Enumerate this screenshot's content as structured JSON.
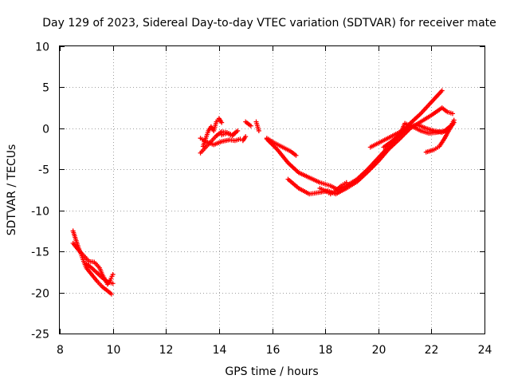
{
  "chart_data": {
    "type": "scatter",
    "title": "Day 129 of 2023, Sidereal Day-to-day VTEC variation (SDTVAR) for receiver mate",
    "xlabel": "GPS time / hours",
    "ylabel": "SDTVAR / TECUs",
    "xlim": [
      8,
      24
    ],
    "ylim": [
      -25,
      10
    ],
    "grid": true,
    "marker": "plus",
    "color": "#ff0000",
    "x_ticks": [
      8,
      10,
      12,
      14,
      16,
      18,
      20,
      22,
      24
    ],
    "y_ticks": [
      10,
      5,
      0,
      -5,
      -10,
      -15,
      -20,
      -25
    ],
    "tracks": [
      {
        "name": "track-1",
        "points": [
          [
            8.5,
            -12.5
          ],
          [
            8.6,
            -13.5
          ],
          [
            8.7,
            -14.5
          ],
          [
            8.8,
            -15.3
          ],
          [
            8.9,
            -16.2
          ],
          [
            9.0,
            -17.0
          ],
          [
            9.2,
            -17.8
          ],
          [
            9.4,
            -18.6
          ],
          [
            9.6,
            -19.3
          ],
          [
            9.8,
            -19.8
          ],
          [
            9.95,
            -20.2
          ]
        ]
      },
      {
        "name": "track-2",
        "points": [
          [
            8.5,
            -14.0
          ],
          [
            8.7,
            -14.8
          ],
          [
            8.9,
            -15.5
          ],
          [
            9.1,
            -16.2
          ],
          [
            9.3,
            -16.3
          ],
          [
            9.5,
            -17.0
          ],
          [
            9.6,
            -17.8
          ],
          [
            9.7,
            -18.4
          ],
          [
            9.8,
            -19.0
          ],
          [
            9.9,
            -18.5
          ],
          [
            10.0,
            -17.8
          ]
        ]
      },
      {
        "name": "track-3",
        "points": [
          [
            9.0,
            -16.5
          ],
          [
            9.2,
            -17.0
          ],
          [
            9.4,
            -17.6
          ],
          [
            9.6,
            -18.2
          ],
          [
            9.8,
            -18.7
          ],
          [
            10.0,
            -18.9
          ]
        ]
      },
      {
        "name": "track-4",
        "points": [
          [
            13.3,
            -3.0
          ],
          [
            13.5,
            -2.3
          ],
          [
            13.7,
            -1.6
          ],
          [
            13.9,
            -0.9
          ],
          [
            14.1,
            -0.4
          ],
          [
            14.3,
            -0.5
          ],
          [
            14.5,
            -0.8
          ],
          [
            14.7,
            -0.3
          ]
        ]
      },
      {
        "name": "track-5",
        "points": [
          [
            13.3,
            -1.2
          ],
          [
            13.5,
            -1.6
          ],
          [
            13.8,
            -2.0
          ],
          [
            14.1,
            -1.6
          ],
          [
            14.4,
            -1.4
          ],
          [
            14.6,
            -1.5
          ],
          [
            14.8,
            -1.3
          ]
        ]
      },
      {
        "name": "track-6",
        "points": [
          [
            13.4,
            -2.2
          ],
          [
            13.5,
            -1.2
          ],
          [
            13.6,
            -0.3
          ],
          [
            13.7,
            0.2
          ],
          [
            13.8,
            -0.3
          ],
          [
            13.9,
            0.8
          ],
          [
            14.0,
            1.2
          ],
          [
            14.1,
            0.7
          ]
        ]
      },
      {
        "name": "track-7",
        "points": [
          [
            14.1,
            -0.8
          ],
          [
            14.3,
            -0.6
          ],
          [
            14.5,
            -0.9
          ],
          [
            14.6,
            -0.6
          ]
        ]
      },
      {
        "name": "track-8",
        "points": [
          [
            14.9,
            -1.5
          ],
          [
            15.0,
            -1.0
          ]
        ]
      },
      {
        "name": "track-9",
        "points": [
          [
            15.0,
            0.8
          ],
          [
            15.2,
            0.3
          ]
        ]
      },
      {
        "name": "track-10",
        "points": [
          [
            15.4,
            0.8
          ],
          [
            15.5,
            -0.3
          ]
        ]
      },
      {
        "name": "track-11",
        "points": [
          [
            15.8,
            -1.2
          ],
          [
            16.1,
            -1.8
          ],
          [
            16.4,
            -2.3
          ],
          [
            16.7,
            -2.8
          ],
          [
            16.9,
            -3.3
          ]
        ]
      },
      {
        "name": "track-12",
        "points": [
          [
            15.8,
            -1.3
          ],
          [
            16.2,
            -2.6
          ],
          [
            16.6,
            -4.2
          ],
          [
            17.0,
            -5.4
          ],
          [
            17.4,
            -6.0
          ],
          [
            17.8,
            -6.6
          ],
          [
            18.2,
            -7.0
          ],
          [
            18.5,
            -7.5
          ],
          [
            18.8,
            -7.0
          ],
          [
            19.2,
            -6.2
          ],
          [
            19.6,
            -5.0
          ],
          [
            20.0,
            -3.6
          ],
          [
            20.4,
            -2.2
          ],
          [
            20.8,
            -0.8
          ],
          [
            21.2,
            0.6
          ],
          [
            21.6,
            1.8
          ],
          [
            22.0,
            3.2
          ],
          [
            22.4,
            4.6
          ]
        ]
      },
      {
        "name": "track-13",
        "points": [
          [
            16.6,
            -6.2
          ],
          [
            17.0,
            -7.3
          ],
          [
            17.4,
            -8.0
          ],
          [
            17.8,
            -7.8
          ],
          [
            18.1,
            -7.6
          ],
          [
            18.4,
            -8.0
          ],
          [
            18.8,
            -7.3
          ],
          [
            19.2,
            -6.5
          ],
          [
            19.6,
            -5.3
          ],
          [
            20.0,
            -4.0
          ],
          [
            20.4,
            -2.5
          ],
          [
            20.8,
            -1.3
          ],
          [
            21.2,
            0.0
          ],
          [
            21.6,
            0.8
          ],
          [
            22.0,
            1.6
          ],
          [
            22.4,
            2.5
          ],
          [
            22.6,
            2.0
          ],
          [
            22.8,
            1.8
          ]
        ]
      },
      {
        "name": "track-14",
        "points": [
          [
            17.8,
            -7.3
          ],
          [
            18.0,
            -7.6
          ],
          [
            18.2,
            -8.0
          ],
          [
            18.4,
            -7.6
          ],
          [
            18.6,
            -7.0
          ],
          [
            18.8,
            -6.6
          ]
        ]
      },
      {
        "name": "track-15",
        "points": [
          [
            19.7,
            -2.3
          ],
          [
            20.0,
            -1.8
          ],
          [
            20.3,
            -1.3
          ],
          [
            20.6,
            -0.8
          ],
          [
            20.9,
            -0.3
          ],
          [
            21.2,
            0.3
          ],
          [
            21.5,
            0.4
          ],
          [
            21.8,
            0.0
          ],
          [
            22.1,
            -0.3
          ],
          [
            22.4,
            -0.5
          ],
          [
            22.7,
            0.0
          ],
          [
            22.85,
            0.7
          ]
        ]
      },
      {
        "name": "track-16",
        "points": [
          [
            20.2,
            -2.3
          ],
          [
            20.5,
            -1.6
          ],
          [
            20.8,
            -0.8
          ],
          [
            21.0,
            0.6
          ],
          [
            21.3,
            0.2
          ],
          [
            21.6,
            -0.3
          ],
          [
            21.9,
            -0.6
          ],
          [
            22.2,
            -0.5
          ],
          [
            22.5,
            -0.3
          ],
          [
            22.8,
            0.5
          ]
        ]
      },
      {
        "name": "track-17",
        "points": [
          [
            21.8,
            -2.9
          ],
          [
            22.1,
            -2.6
          ],
          [
            22.3,
            -2.2
          ],
          [
            22.5,
            -1.2
          ],
          [
            22.7,
            0.0
          ],
          [
            22.85,
            1.0
          ]
        ]
      }
    ]
  }
}
